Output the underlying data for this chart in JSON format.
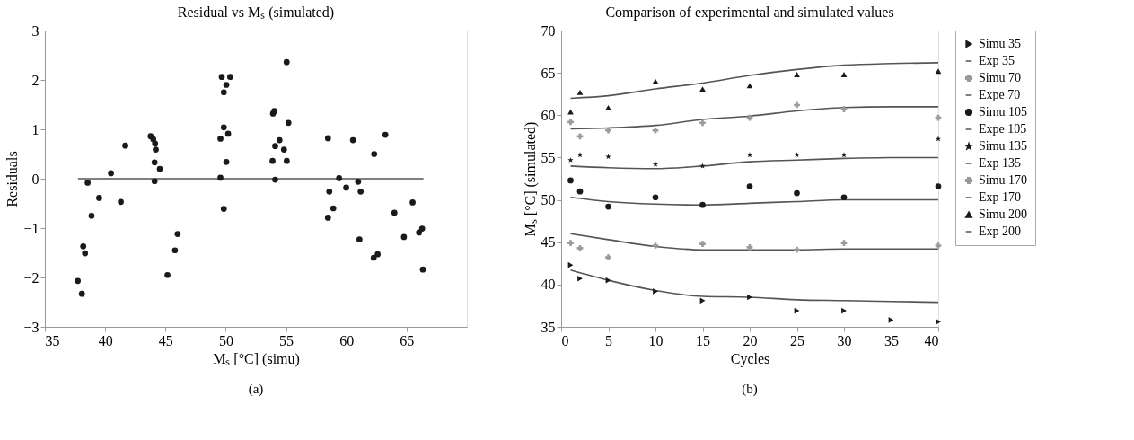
{
  "chart_data": [
    {
      "type": "scatter",
      "title": "Residual vs Mₛ (simulated)",
      "xlabel": "Mₛ [°C] (simu)",
      "ylabel": "Residuals",
      "annotations": [
        "(a)"
      ],
      "xlim": [
        35,
        70
      ],
      "xticks": [
        35,
        40,
        45,
        50,
        55,
        60,
        65
      ],
      "ylim": [
        -3,
        3
      ],
      "yticks": [
        {
          "value": -3,
          "label": "−3"
        },
        {
          "value": -2,
          "label": "−2"
        },
        {
          "value": -1,
          "label": "−1"
        },
        0,
        1,
        2,
        3
      ],
      "grid": false,
      "legend": false,
      "series": [
        {
          "marker": "circle",
          "color": "#1a1a1a",
          "x": [
            37.73,
            38.07,
            38.18,
            38.33,
            38.55,
            38.87,
            39.5,
            40.48,
            41.3,
            41.67,
            43.77,
            43.99,
            44.14,
            44.2,
            44.1,
            44.53,
            44.1,
            45.17,
            45.79,
            46.01,
            49.67,
            50.37,
            50.05,
            49.84,
            49.84,
            50.2,
            49.56,
            50.05,
            49.56,
            49.84,
            53.92,
            54.03,
            54.1,
            54.46,
            54.83,
            53.88,
            55.06,
            54.1,
            55.05,
            55.2,
            58.48,
            58.59,
            58.92,
            58.48,
            59.4,
            59.99,
            60.55,
            60.98,
            61.19,
            61.09,
            62.31,
            63.24,
            62.27,
            62.6,
            63.99,
            64.78,
            65.5,
            66.03,
            66.29,
            66.35
          ],
          "values": [
            -2.07,
            -2.33,
            -1.37,
            -1.51,
            -0.08,
            -0.75,
            -0.39,
            0.11,
            -0.47,
            0.67,
            0.86,
            0.8,
            0.71,
            0.59,
            0.33,
            0.2,
            -0.05,
            -1.95,
            -1.45,
            -1.12,
            2.06,
            2.06,
            1.9,
            1.75,
            1.04,
            0.91,
            0.81,
            0.34,
            0.02,
            -0.61,
            1.32,
            1.37,
            0.66,
            0.78,
            0.59,
            0.36,
            0.36,
            -0.02,
            2.36,
            1.13,
            0.82,
            -0.26,
            -0.6,
            -0.79,
            0.01,
            -0.18,
            0.78,
            -0.06,
            -0.26,
            -1.23,
            0.5,
            0.89,
            -1.6,
            -1.53,
            -0.69,
            -1.18,
            -0.48,
            -1.09,
            -1.01,
            -1.84
          ]
        },
        {
          "type": "line",
          "line_style": "solid",
          "color": "#555555",
          "x": [
            37.75,
            66.4
          ],
          "values": [
            0,
            0
          ]
        }
      ]
    },
    {
      "type": "line",
      "title": "Comparison of experimental and simulated values",
      "xlabel": "Cycles",
      "ylabel": "Mₛ [°C] (simulated)",
      "annotations": [
        "(b)"
      ],
      "xlim": [
        0,
        40
      ],
      "xticks": [
        0,
        5,
        10,
        15,
        20,
        25,
        30,
        35,
        40
      ],
      "ylim": [
        35,
        70
      ],
      "yticks": [
        35,
        40,
        45,
        50,
        55,
        60,
        65,
        70
      ],
      "grid": false,
      "legend": "right",
      "line_style": "solid",
      "x": [
        1,
        2,
        5,
        10,
        15,
        20,
        25,
        30,
        35,
        40
      ],
      "series": [
        {
          "name": "Simu 35",
          "type": "scatter",
          "marker": "triangle-right",
          "color": "#1a1a1a",
          "values": [
            42.3,
            40.7,
            40.5,
            39.2,
            38.1,
            38.5,
            36.9,
            36.9,
            35.8,
            35.6
          ]
        },
        {
          "name": "Exp 35",
          "color": "#555555",
          "x": [
            1,
            5,
            10,
            15,
            20,
            25,
            30,
            35,
            40
          ],
          "values": [
            41.7,
            40.5,
            39.3,
            38.6,
            38.5,
            38.2,
            38.1,
            38.0,
            37.9
          ]
        },
        {
          "name": "Simu 70",
          "type": "scatter",
          "marker": "cross",
          "color": "#9a9a9a",
          "values": [
            59.2,
            57.5,
            58.2,
            58.2,
            59.1,
            59.7,
            61.2,
            60.7,
            null,
            59.7
          ]
        },
        {
          "name": "Expe 70",
          "color": "#555555",
          "x": [
            1,
            5,
            10,
            15,
            20,
            25,
            30,
            35,
            40
          ],
          "values": [
            58.4,
            58.5,
            58.8,
            59.5,
            59.9,
            60.5,
            60.9,
            61.0,
            61.0
          ]
        },
        {
          "name": "Simu 105",
          "type": "scatter",
          "marker": "circle",
          "color": "#1a1a1a",
          "values": [
            52.3,
            51.0,
            49.2,
            50.3,
            49.4,
            51.6,
            50.8,
            50.3,
            null,
            51.6
          ]
        },
        {
          "name": "Expe 105",
          "color": "#555555",
          "x": [
            1,
            5,
            10,
            15,
            20,
            25,
            30,
            35,
            40
          ],
          "values": [
            50.3,
            49.8,
            49.5,
            49.4,
            49.6,
            49.8,
            50.0,
            50.0,
            50.0
          ]
        },
        {
          "name": "Simu 135",
          "type": "scatter",
          "marker": "star",
          "color": "#1a1a1a",
          "values": [
            54.7,
            55.3,
            55.1,
            54.2,
            54.0,
            55.3,
            55.3,
            55.3,
            null,
            57.2
          ]
        },
        {
          "name": "Exp 135",
          "color": "#555555",
          "x": [
            1,
            5,
            10,
            15,
            20,
            25,
            30,
            35,
            40
          ],
          "values": [
            54.0,
            53.8,
            53.7,
            54.0,
            54.5,
            54.7,
            54.9,
            55.0,
            55.0
          ]
        },
        {
          "name": "Simu 170",
          "type": "scatter",
          "marker": "cross",
          "color": "#9a9a9a",
          "values": [
            44.9,
            44.3,
            43.2,
            44.6,
            44.8,
            44.4,
            44.1,
            44.9,
            null,
            44.6
          ]
        },
        {
          "name": "Exp 170",
          "color": "#555555",
          "x": [
            1,
            5,
            10,
            15,
            20,
            25,
            30,
            35,
            40
          ],
          "values": [
            46.0,
            45.3,
            44.5,
            44.1,
            44.1,
            44.1,
            44.2,
            44.2,
            44.2
          ]
        },
        {
          "name": "Simu 200",
          "type": "scatter",
          "marker": "triangle",
          "color": "#1a1a1a",
          "values": [
            60.4,
            62.7,
            60.9,
            64.0,
            63.1,
            63.5,
            64.8,
            64.8,
            null,
            65.2
          ]
        },
        {
          "name": "Exp 200",
          "color": "#555555",
          "x": [
            1,
            5,
            10,
            15,
            20,
            25,
            30,
            35,
            40
          ],
          "values": [
            62.0,
            62.3,
            63.1,
            63.8,
            64.7,
            65.4,
            65.9,
            66.1,
            66.2
          ]
        }
      ]
    }
  ]
}
